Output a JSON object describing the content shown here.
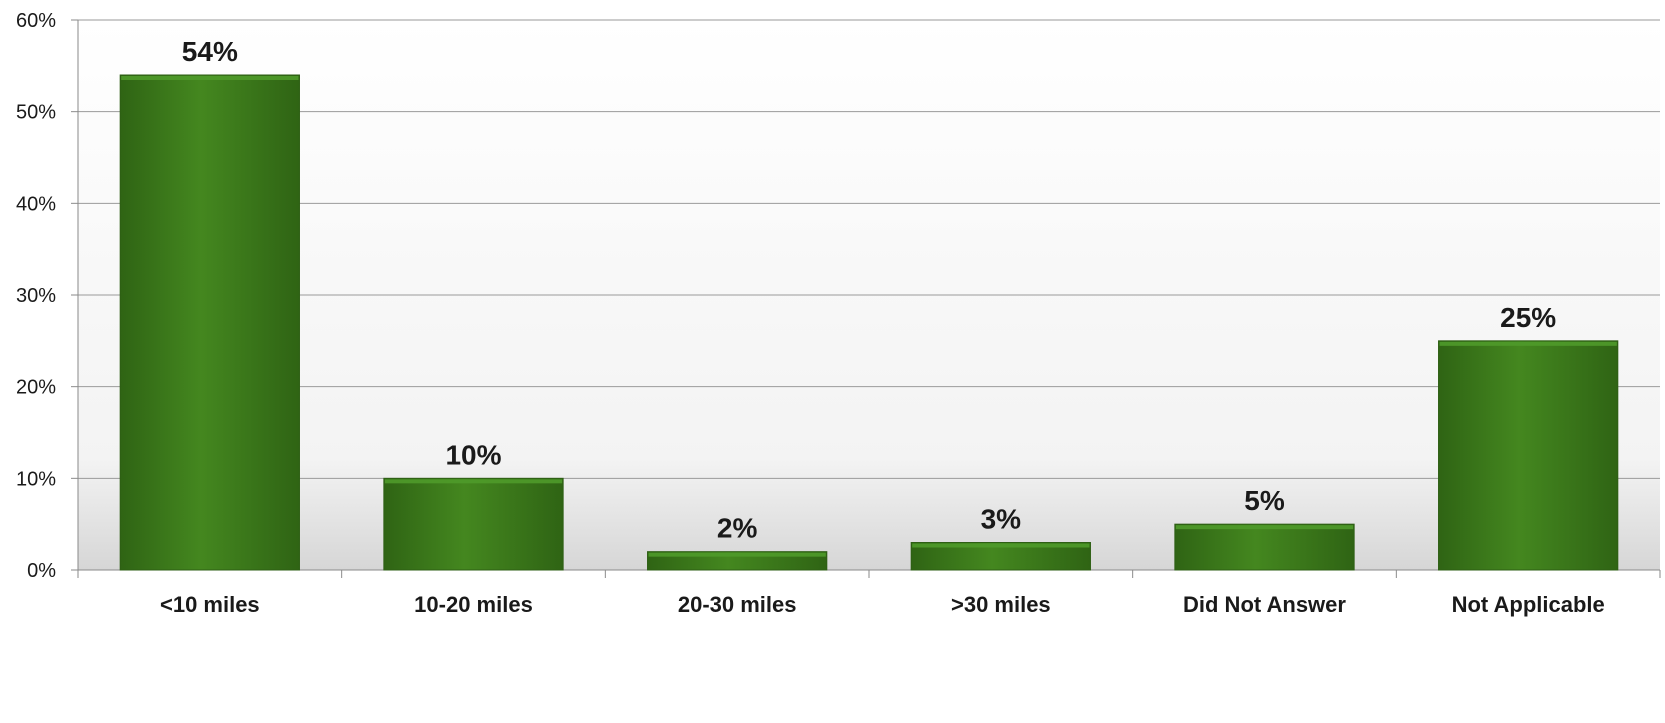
{
  "chart_data": {
    "type": "bar",
    "categories": [
      "<10 miles",
      "10-20 miles",
      "20-30 miles",
      ">30 miles",
      "Did Not Answer",
      "Not Applicable"
    ],
    "values": [
      54,
      10,
      2,
      3,
      5,
      25
    ],
    "data_labels": [
      "54%",
      "10%",
      "2%",
      "3%",
      "5%",
      "25%"
    ],
    "yticks": [
      "0%",
      "10%",
      "20%",
      "30%",
      "40%",
      "50%",
      "60%"
    ],
    "ylim": [
      0,
      60
    ],
    "grid": true,
    "legend": "none",
    "colors": {
      "bar": "#3f7f1d",
      "bar_dark": "#2e5f14",
      "bar_light": "#4f9a2a",
      "grid": "#9a9a9a",
      "axis": "#8a8a8a"
    }
  }
}
